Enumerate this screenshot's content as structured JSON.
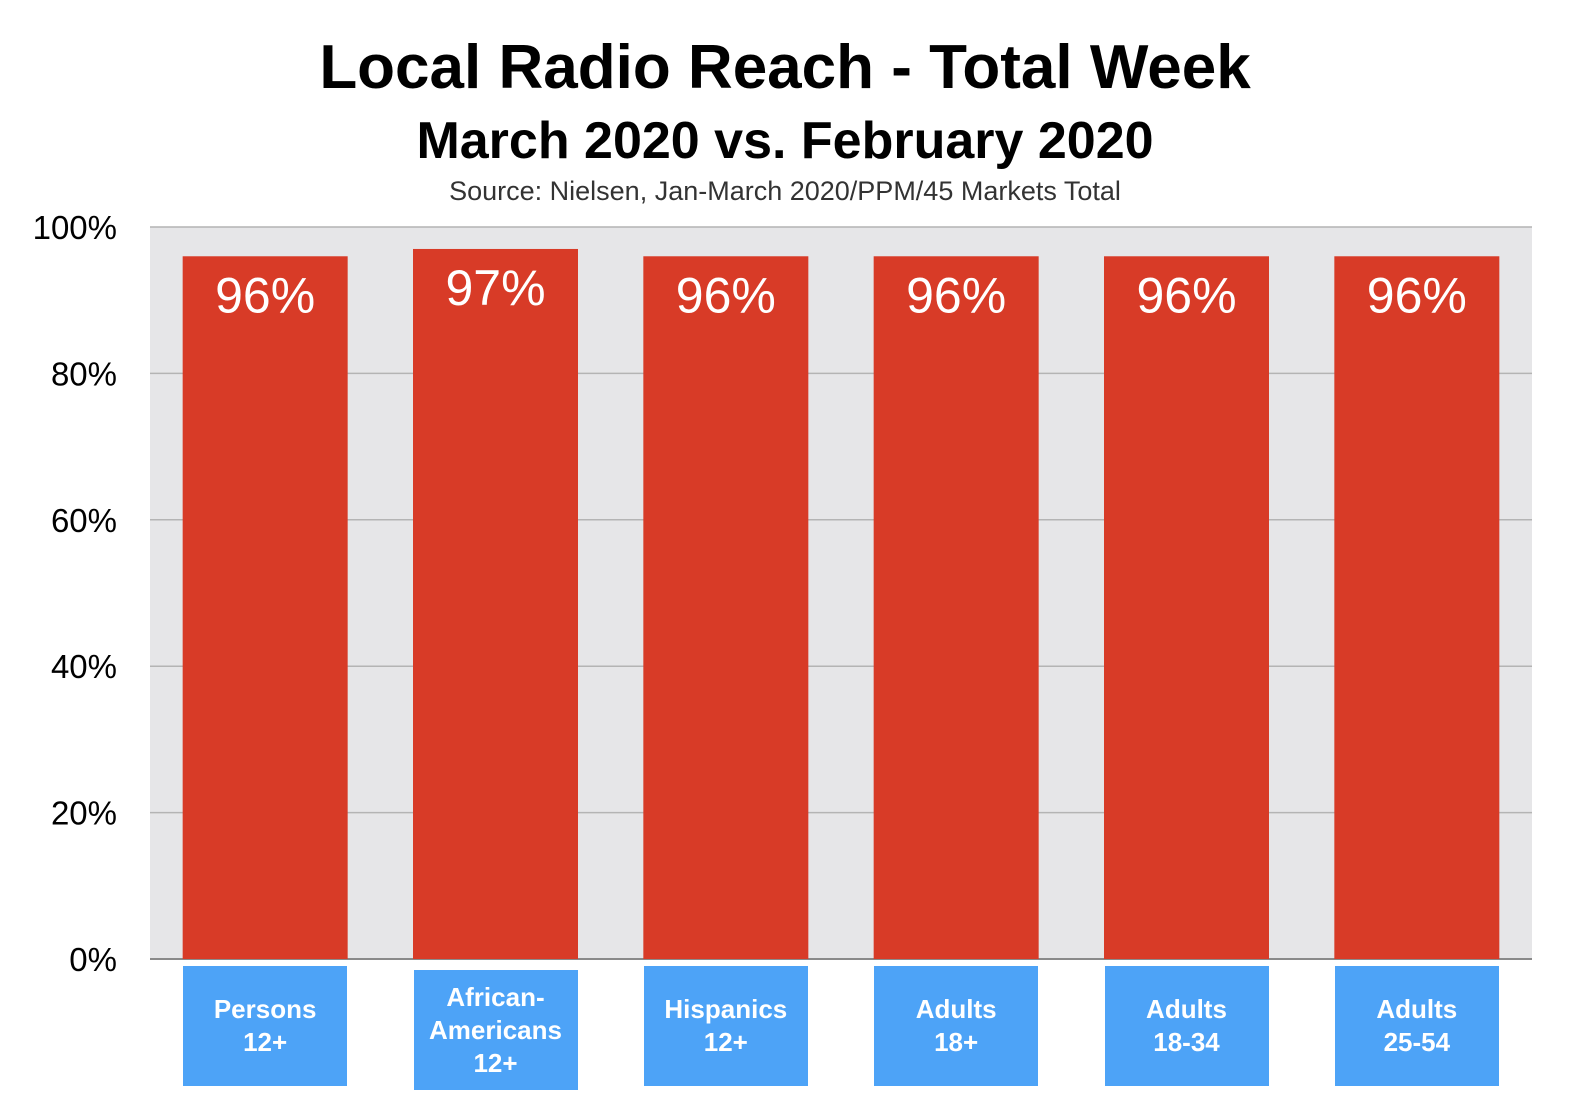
{
  "chart_data": {
    "type": "bar",
    "title": "Local Radio Reach - Total Week",
    "subtitle": "March 2020 vs. February 2020",
    "source": "Source: Nielsen, Jan-March 2020/PPM/45 Markets Total",
    "categories": [
      "Persons\n12+",
      "African-\nAmericans\n12+",
      "Hispanics\n12+",
      "Adults\n18+",
      "Adults\n18-34",
      "Adults\n25-54"
    ],
    "values": [
      96,
      97,
      96,
      96,
      96,
      96
    ],
    "data_labels": [
      "96%",
      "97%",
      "96%",
      "96%",
      "96%",
      "96%"
    ],
    "y_ticks": [
      "0%",
      "20%",
      "40%",
      "60%",
      "80%",
      "100%"
    ],
    "ylim": [
      0,
      100
    ],
    "grid": true,
    "colors": {
      "bar": "#d83b27",
      "plot_bg": "#e6e6e8",
      "grid": "#b4b4b4",
      "category_box": "#4da3f7"
    }
  }
}
